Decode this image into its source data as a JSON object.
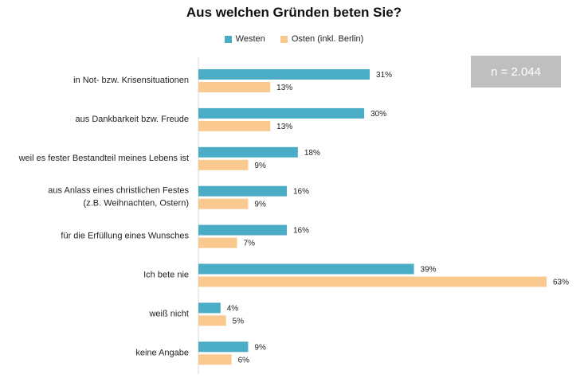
{
  "colors": {
    "west": "#4bacc6",
    "east": "#fac98f",
    "axis": "#d9d9d9",
    "note_bg": "#bfbfbf"
  },
  "note": "n = 2.044",
  "chart_data": {
    "type": "bar",
    "orientation": "horizontal",
    "title": "Aus welchen Gründen beten Sie?",
    "legend_position": "top",
    "grid": false,
    "xlim": [
      0,
      65
    ],
    "categories": [
      [
        "in Not- bzw. Krisensituationen"
      ],
      [
        "aus Dankbarkeit bzw. Freude"
      ],
      [
        "weil es fester Bestandteil meines Lebens ist"
      ],
      [
        "aus Anlass eines christlichen Festes",
        "(z.B. Weihnachten, Ostern)"
      ],
      [
        "für die Erfüllung eines Wunsches"
      ],
      [
        "Ich bete nie"
      ],
      [
        "weiß nicht"
      ],
      [
        "keine Angabe"
      ]
    ],
    "series": [
      {
        "name": "Westen",
        "values": [
          31,
          30,
          18,
          16,
          16,
          39,
          4,
          9
        ],
        "labels": [
          "31%",
          "30%",
          "18%",
          "16%",
          "16%",
          "39%",
          "4%",
          "9%"
        ]
      },
      {
        "name": "Osten (inkl. Berlin)",
        "values": [
          13,
          13,
          9,
          9,
          7,
          63,
          5,
          6
        ],
        "labels": [
          "13%",
          "13%",
          "9%",
          "9%",
          "7%",
          "63%",
          "5%",
          "6%"
        ]
      }
    ]
  }
}
